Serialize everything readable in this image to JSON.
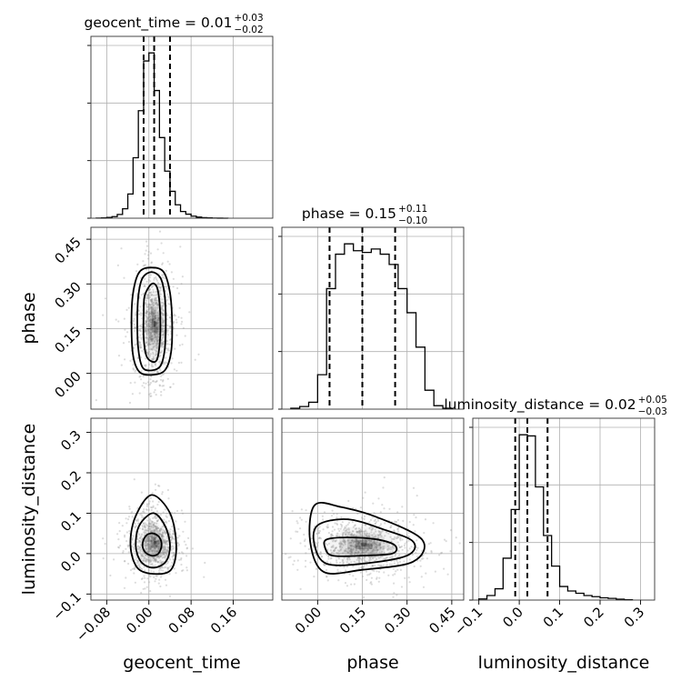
{
  "chart_data": {
    "type": "corner",
    "parameters": [
      {
        "name": "geocent_time",
        "xlabel": "geocent_time",
        "ylabel": "",
        "range": [
          -0.11,
          0.235
        ],
        "ticks": [
          -0.08,
          0.0,
          0.08,
          0.16
        ],
        "tick_labels": [
          "−0.08",
          "0.00",
          "0.08",
          "0.16"
        ],
        "title_main": "geocent_time = 0.01",
        "title_plus": "+0.03",
        "title_minus": "−0.02",
        "median": 0.01,
        "q_low": -0.01,
        "q_high": 0.04,
        "hist_edges": [
          -0.1,
          -0.09,
          -0.08,
          -0.07,
          -0.06,
          -0.05,
          -0.04,
          -0.03,
          -0.02,
          -0.01,
          0.0,
          0.01,
          0.02,
          0.03,
          0.04,
          0.05,
          0.06,
          0.07,
          0.08,
          0.09,
          0.1,
          0.11,
          0.12,
          0.13,
          0.14,
          0.15
        ],
        "hist_counts": [
          0.1,
          0.2,
          0.6,
          1.2,
          2.8,
          7,
          18,
          45,
          80,
          117,
          123,
          95,
          60,
          35,
          20,
          10,
          5,
          3,
          1.5,
          0.8,
          0.4,
          0.2,
          0.1,
          0.05,
          0.02
        ]
      },
      {
        "name": "phase",
        "xlabel": "phase",
        "ylabel": "phase",
        "range": [
          -0.12,
          0.49
        ],
        "ticks": [
          0.0,
          0.15,
          0.3,
          0.45
        ],
        "tick_labels": [
          "0.00",
          "0.15",
          "0.30",
          "0.45"
        ],
        "title_main": "phase = 0.15",
        "title_plus": "+0.11",
        "title_minus": "−0.10",
        "median": 0.15,
        "q_low": 0.04,
        "q_high": 0.26,
        "hist_edges": [
          -0.09,
          -0.06,
          -0.03,
          0.0,
          0.03,
          0.06,
          0.09,
          0.12,
          0.15,
          0.18,
          0.21,
          0.24,
          0.27,
          0.3,
          0.33,
          0.36,
          0.39,
          0.42,
          0.45
        ],
        "hist_counts": [
          0.5,
          1.5,
          4,
          20,
          70,
          90,
          96,
          92,
          91,
          93,
          90,
          84,
          70,
          56,
          36,
          11,
          2,
          0.5
        ]
      },
      {
        "name": "luminosity_distance",
        "xlabel": "luminosity_distance",
        "ylabel": "luminosity_distance",
        "range": [
          -0.115,
          0.335
        ],
        "ticks": [
          -0.1,
          0.0,
          0.1,
          0.2,
          0.3
        ],
        "tick_labels": [
          "−0.1",
          "0.0",
          "0.1",
          "0.2",
          "0.3"
        ],
        "title_main": "luminosity_distance = 0.02",
        "title_plus": "+0.05",
        "title_minus": "−0.03",
        "median": 0.02,
        "q_low": -0.01,
        "q_high": 0.07,
        "hist_edges": [
          -0.1,
          -0.08,
          -0.06,
          -0.04,
          -0.02,
          0.0,
          0.02,
          0.04,
          0.06,
          0.08,
          0.1,
          0.12,
          0.14,
          0.16,
          0.18,
          0.2,
          0.22,
          0.24,
          0.26,
          0.28
        ],
        "hist_counts": [
          1,
          4,
          10,
          37,
          80,
          146,
          145,
          100,
          57,
          30,
          12,
          8,
          6,
          4,
          3,
          2,
          1.5,
          0.8,
          0.3
        ]
      }
    ],
    "pairs": [
      {
        "x": "geocent_time",
        "y": "phase",
        "center": [
          0.01,
          0.16
        ],
        "spread": [
          0.018,
          0.09
        ],
        "rho": 0.0,
        "contours": [
          {
            "level": "1-sigma",
            "points": [
              [
                0.005,
                0.3
              ],
              [
                0.015,
                0.29
              ],
              [
                0.02,
                0.24
              ],
              [
                0.022,
                0.16
              ],
              [
                0.02,
                0.09
              ],
              [
                0.015,
                0.045
              ],
              [
                0.005,
                0.04
              ],
              [
                -0.005,
                0.06
              ],
              [
                -0.01,
                0.12
              ],
              [
                -0.01,
                0.2
              ],
              [
                -0.008,
                0.26
              ]
            ]
          },
          {
            "level": "2-sigma",
            "points": [
              [
                0.005,
                0.34
              ],
              [
                0.022,
                0.32
              ],
              [
                0.03,
                0.26
              ],
              [
                0.032,
                0.17
              ],
              [
                0.03,
                0.08
              ],
              [
                0.022,
                0.025
              ],
              [
                0.005,
                0.01
              ],
              [
                -0.012,
                0.02
              ],
              [
                -0.02,
                0.08
              ],
              [
                -0.022,
                0.17
              ],
              [
                -0.02,
                0.26
              ],
              [
                -0.012,
                0.32
              ]
            ]
          },
          {
            "level": "3-sigma",
            "points": [
              [
                0.005,
                0.355
              ],
              [
                0.028,
                0.34
              ],
              [
                0.04,
                0.27
              ],
              [
                0.044,
                0.17
              ],
              [
                0.042,
                0.07
              ],
              [
                0.03,
                0.01
              ],
              [
                0.005,
                -0.005
              ],
              [
                -0.018,
                0.005
              ],
              [
                -0.03,
                0.06
              ],
              [
                -0.033,
                0.17
              ],
              [
                -0.03,
                0.27
              ],
              [
                -0.018,
                0.34
              ]
            ]
          }
        ]
      },
      {
        "x": "geocent_time",
        "y": "luminosity_distance",
        "center": [
          0.01,
          0.025
        ],
        "spread": [
          0.022,
          0.04
        ],
        "rho": 0.0,
        "contours": [
          {
            "level": "1-sigma",
            "points": [
              [
                0.008,
                0.05
              ],
              [
                0.02,
                0.04
              ],
              [
                0.024,
                0.02
              ],
              [
                0.018,
                0.0
              ],
              [
                0.005,
                -0.005
              ],
              [
                -0.008,
                0.005
              ],
              [
                -0.012,
                0.025
              ],
              [
                -0.005,
                0.045
              ]
            ]
          },
          {
            "level": "2-sigma",
            "points": [
              [
                0.008,
                0.1
              ],
              [
                0.03,
                0.07
              ],
              [
                0.04,
                0.02
              ],
              [
                0.032,
                -0.02
              ],
              [
                0.008,
                -0.035
              ],
              [
                -0.015,
                -0.02
              ],
              [
                -0.025,
                0.02
              ],
              [
                -0.018,
                0.07
              ]
            ]
          },
          {
            "level": "3-sigma",
            "points": [
              [
                0.005,
                0.145
              ],
              [
                0.04,
                0.1
              ],
              [
                0.052,
                0.02
              ],
              [
                0.042,
                -0.04
              ],
              [
                0.008,
                -0.05
              ],
              [
                -0.022,
                -0.035
              ],
              [
                -0.035,
                0.02
              ],
              [
                -0.026,
                0.09
              ]
            ]
          }
        ]
      },
      {
        "x": "phase",
        "y": "luminosity_distance",
        "center": [
          0.15,
          0.02
        ],
        "spread": [
          0.09,
          0.035
        ],
        "rho": -0.1,
        "contours": [
          {
            "level": "1-sigma",
            "points": [
              [
                0.03,
                0.035
              ],
              [
                0.1,
                0.04
              ],
              [
                0.2,
                0.035
              ],
              [
                0.26,
                0.02
              ],
              [
                0.25,
                0.0
              ],
              [
                0.15,
                -0.005
              ],
              [
                0.05,
                -0.005
              ],
              [
                0.025,
                0.015
              ]
            ]
          },
          {
            "level": "2-sigma",
            "points": [
              [
                0.0,
                0.07
              ],
              [
                0.1,
                0.085
              ],
              [
                0.22,
                0.06
              ],
              [
                0.32,
                0.03
              ],
              [
                0.3,
                -0.005
              ],
              [
                0.15,
                -0.025
              ],
              [
                0.03,
                -0.025
              ],
              [
                -0.01,
                0.02
              ]
            ]
          },
          {
            "level": "3-sigma",
            "points": [
              [
                -0.01,
                0.12
              ],
              [
                0.08,
                0.115
              ],
              [
                0.2,
                0.09
              ],
              [
                0.35,
                0.035
              ],
              [
                0.32,
                -0.02
              ],
              [
                0.15,
                -0.04
              ],
              [
                0.02,
                -0.045
              ],
              [
                -0.025,
                0.03
              ]
            ]
          }
        ]
      }
    ],
    "grid": true
  }
}
